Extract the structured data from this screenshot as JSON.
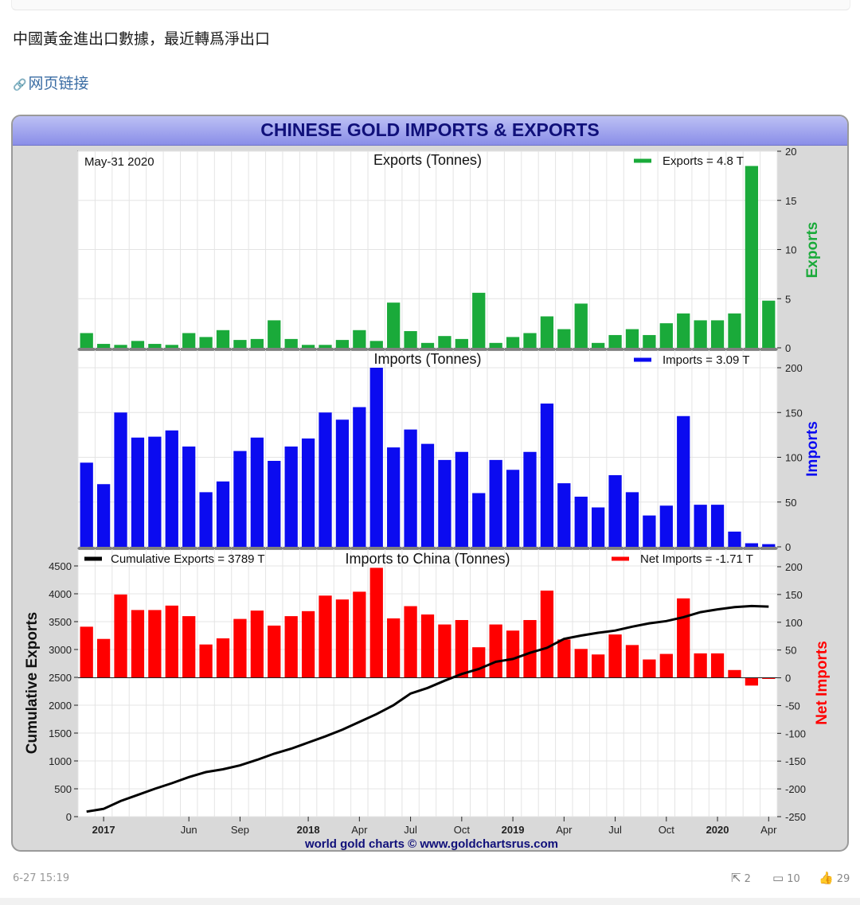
{
  "post": {
    "text": "中國黃金進出口數據，最近轉爲淨出口",
    "link_label": "网页链接",
    "timestamp": "6-27 15:19",
    "actions": {
      "share": "2",
      "comments": "10",
      "likes": "29"
    }
  },
  "chart_data": {
    "title": "CHINESE GOLD IMPORTS & EXPORTS",
    "date_label": "May-31  2020",
    "credit": "world gold charts © www.goldchartsrus.com",
    "x_ticks": [
      "2017",
      "Jun",
      "Sep",
      "2018",
      "Apr",
      "Jul",
      "Oct",
      "2019",
      "Apr",
      "Jul",
      "Oct",
      "2020",
      "Apr"
    ],
    "months": [
      "2016-12",
      "2017-01",
      "2017-02",
      "2017-03",
      "2017-04",
      "2017-05",
      "2017-06",
      "2017-07",
      "2017-08",
      "2017-09",
      "2017-10",
      "2017-11",
      "2017-12",
      "2018-01",
      "2018-02",
      "2018-03",
      "2018-04",
      "2018-05",
      "2018-06",
      "2018-07",
      "2018-08",
      "2018-09",
      "2018-10",
      "2018-11",
      "2018-12",
      "2019-01",
      "2019-02",
      "2019-03",
      "2019-04",
      "2019-05",
      "2019-06",
      "2019-07",
      "2019-08",
      "2019-09",
      "2019-10",
      "2019-11",
      "2019-12",
      "2020-01",
      "2020-02",
      "2020-03",
      "2020-04"
    ],
    "panels": [
      {
        "type": "bar",
        "title": "Exports (Tonnes)",
        "ylabel": "Exports",
        "color": "#1aaa3a",
        "legend": "Exports = 4.8 T",
        "legend_position": "top-right",
        "ylim": [
          0,
          20
        ],
        "y_ticks": [
          0,
          5,
          10,
          15,
          20
        ],
        "values": [
          1.5,
          0.4,
          0.3,
          0.7,
          0.4,
          0.3,
          1.5,
          1.1,
          1.8,
          0.8,
          0.9,
          2.8,
          0.9,
          0.3,
          0.3,
          0.8,
          1.8,
          0.7,
          4.6,
          1.7,
          0.5,
          1.2,
          0.9,
          5.6,
          0.5,
          1.1,
          1.5,
          3.2,
          1.9,
          4.5,
          0.5,
          1.3,
          1.9,
          1.3,
          2.5,
          3.5,
          2.8,
          2.8,
          3.5,
          18.5,
          4.8
        ]
      },
      {
        "type": "bar",
        "title": "Imports (Tonnes)",
        "ylabel": "Imports",
        "color": "#0b0bf0",
        "legend": "Imports = 3.09 T",
        "legend_position": "top-right",
        "ylim": [
          0,
          200
        ],
        "y_ticks": [
          0,
          50,
          100,
          150,
          200
        ],
        "values": [
          94,
          70,
          150,
          122,
          123,
          130,
          112,
          61,
          73,
          107,
          122,
          96,
          112,
          121,
          150,
          142,
          156,
          200,
          111,
          131,
          115,
          97,
          106,
          60,
          97,
          86,
          106,
          160,
          71,
          56,
          44,
          80,
          61,
          35,
          46,
          146,
          47,
          47,
          17,
          4,
          3
        ]
      },
      {
        "type": "bar+line",
        "title": "Imports to China (Tonnes)",
        "net_imports": {
          "name": "Net Imports",
          "legend": "Net Imports = -1.71 T",
          "color": "#ff0000",
          "ylim": [
            -250,
            200
          ],
          "y_ticks": [
            -250,
            -200,
            -150,
            -100,
            -50,
            0,
            50,
            100,
            150,
            200
          ],
          "values": [
            92,
            70,
            150,
            122,
            122,
            130,
            111,
            60,
            71,
            106,
            121,
            94,
            111,
            120,
            148,
            141,
            155,
            198,
            107,
            129,
            114,
            96,
            104,
            55,
            96,
            85,
            104,
            157,
            69,
            52,
            42,
            78,
            59,
            33,
            43,
            143,
            44,
            44,
            14,
            -14,
            -2
          ]
        },
        "cumulative_exports": {
          "name": "Cumulative Exports",
          "legend": "Cumulative Exports  = 3789 T",
          "color": "#000000",
          "ylim": [
            0,
            4600
          ],
          "y_ticks": [
            0,
            500,
            1000,
            1500,
            2000,
            2500,
            3000,
            3500,
            4000,
            4500
          ],
          "values": [
            90,
            140,
            280,
            390,
            500,
            600,
            710,
            800,
            850,
            920,
            1020,
            1130,
            1220,
            1330,
            1440,
            1560,
            1700,
            1840,
            2000,
            2210,
            2310,
            2440,
            2560,
            2650,
            2780,
            2830,
            2940,
            3030,
            3190,
            3250,
            3300,
            3340,
            3410,
            3470,
            3510,
            3580,
            3670,
            3720,
            3760,
            3780,
            3770
          ]
        }
      }
    ]
  }
}
